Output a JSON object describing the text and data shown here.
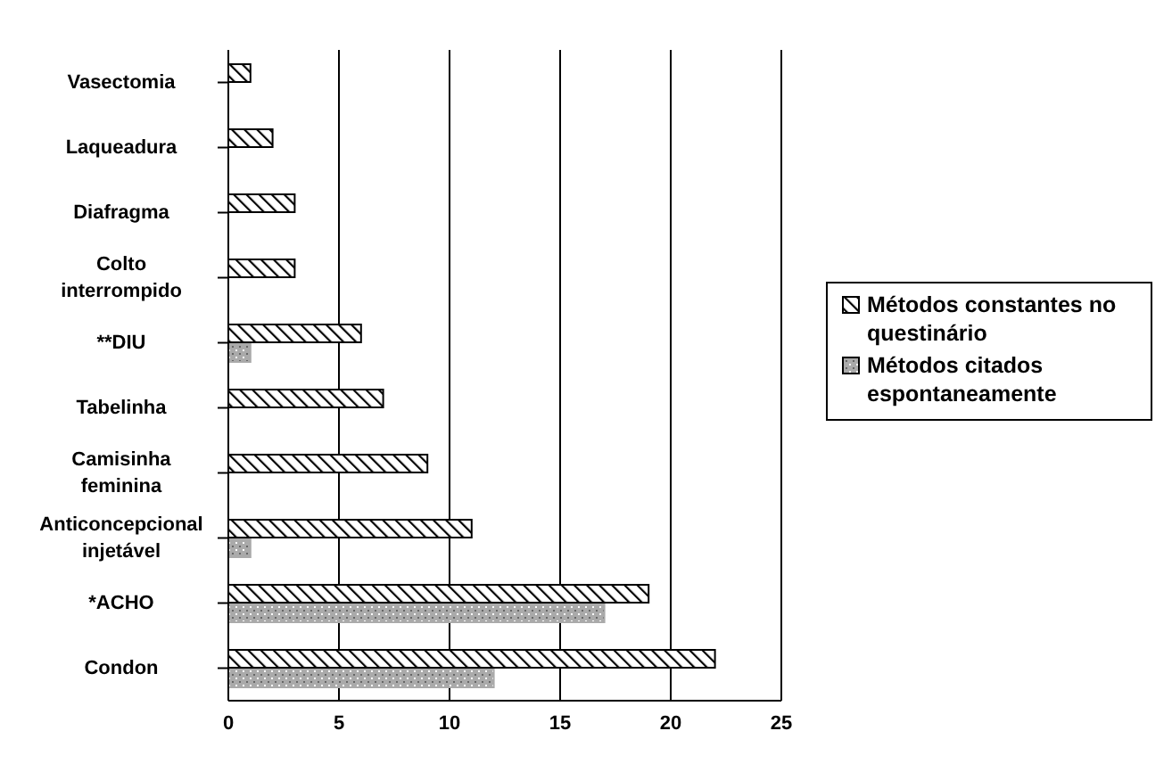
{
  "chart_data": {
    "type": "bar",
    "orientation": "horizontal",
    "categories": [
      "Vasectomia",
      "Laqueadura",
      "Diafragma",
      "Colto interrompido",
      "**DIU",
      "Tabelinha",
      "Camisinha feminina",
      "Anticoncepcional injetável",
      "*ACHO",
      "Condon"
    ],
    "series": [
      {
        "name": "Métodos constantes no questinário",
        "color": "#000000",
        "values": [
          1,
          2,
          3,
          3,
          6,
          7,
          9,
          11,
          19,
          22
        ]
      },
      {
        "name": "Métodos citados espontaneamente",
        "color": "#aaaaaa",
        "values": [
          null,
          null,
          null,
          null,
          1,
          null,
          null,
          1,
          17,
          12
        ]
      }
    ],
    "xlim": [
      0,
      25
    ],
    "xticks": [
      0,
      5,
      10,
      15,
      20,
      25
    ],
    "grid": "x",
    "legend": "right"
  }
}
